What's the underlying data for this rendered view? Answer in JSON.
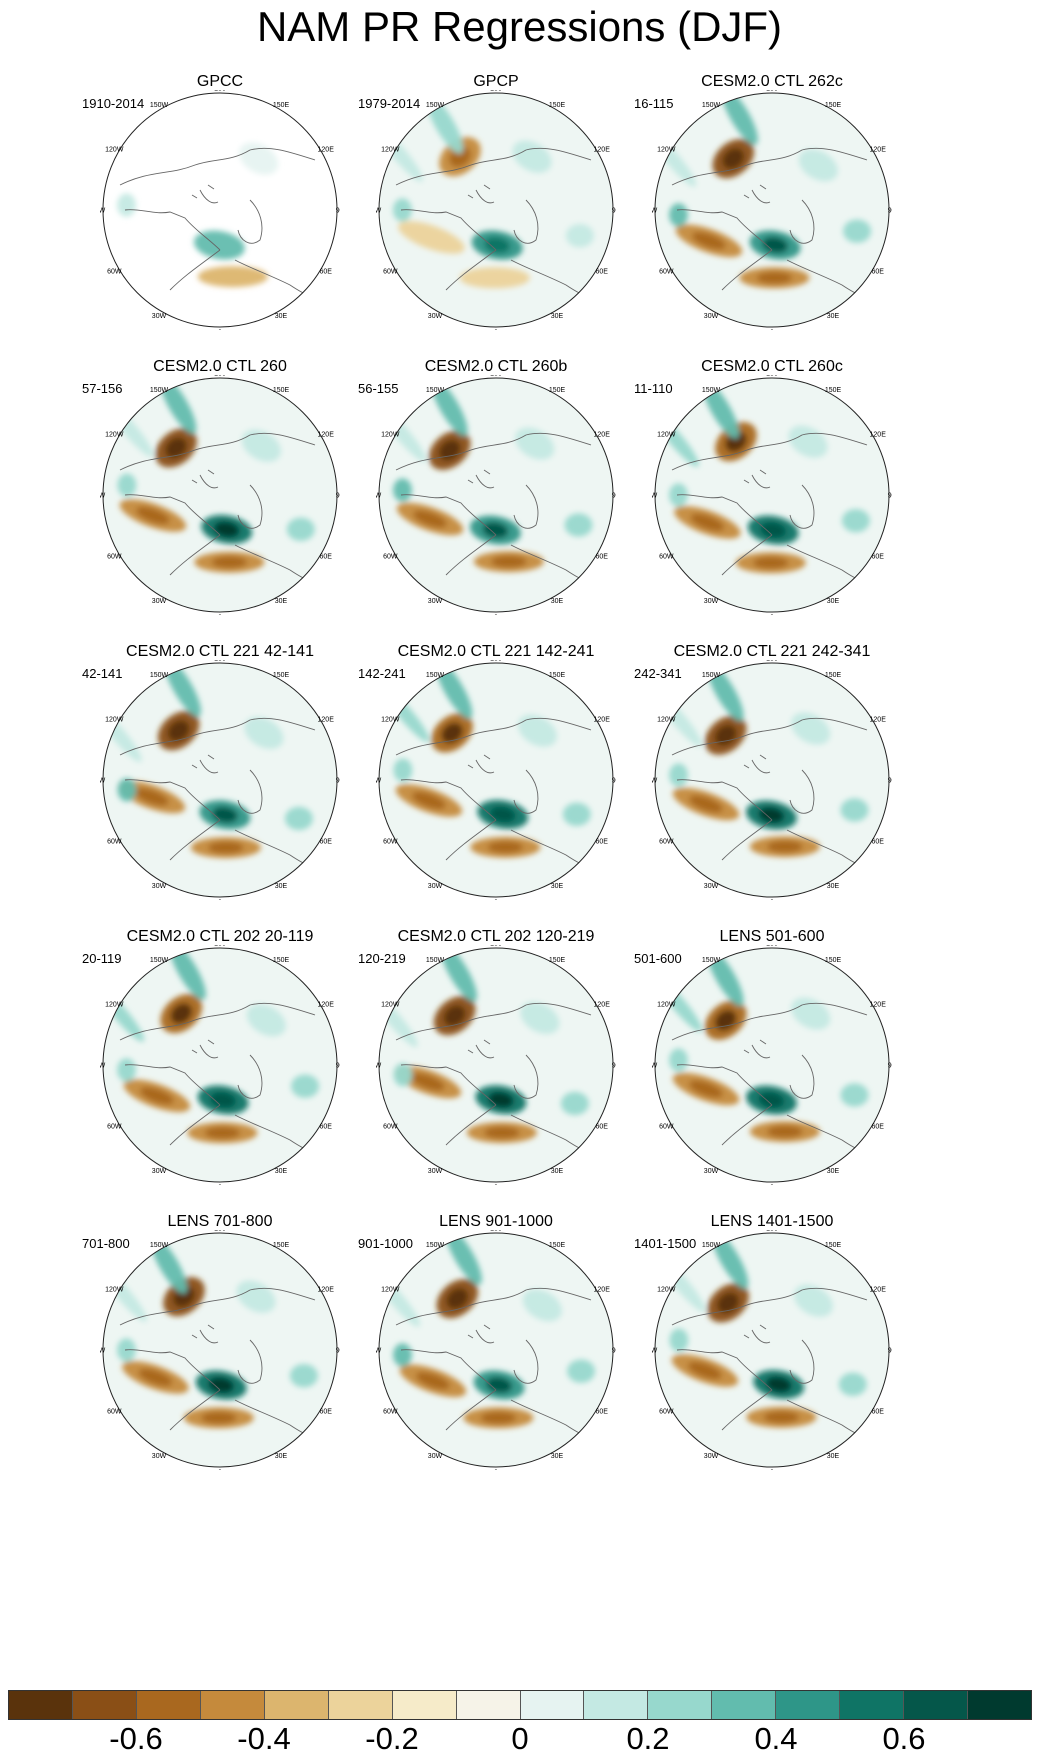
{
  "title": "NAM PR Regressions (DJF)",
  "panels": [
    {
      "title": "GPCC",
      "years": "1910-2014"
    },
    {
      "title": "GPCP",
      "years": "1979-2014"
    },
    {
      "title": "CESM2.0 CTL 262c",
      "years": "16-115"
    },
    {
      "title": "CESM2.0 CTL 260",
      "years": "57-156"
    },
    {
      "title": "CESM2.0 CTL 260b",
      "years": "56-155"
    },
    {
      "title": "CESM2.0 CTL 260c",
      "years": "11-110"
    },
    {
      "title": "CESM2.0 CTL 221 42-141",
      "years": "42-141"
    },
    {
      "title": "CESM2.0 CTL 221 142-241",
      "years": "142-241"
    },
    {
      "title": "CESM2.0 CTL 221 242-341",
      "years": "242-341"
    },
    {
      "title": "CESM2.0 CTL 202 20-119",
      "years": "20-119"
    },
    {
      "title": "CESM2.0 CTL 202 120-219",
      "years": "120-219"
    },
    {
      "title": "LENS 501-600",
      "years": "501-600"
    },
    {
      "title": "LENS 701-800",
      "years": "701-800"
    },
    {
      "title": "LENS 901-1000",
      "years": "901-1000"
    },
    {
      "title": "LENS 1401-1500",
      "years": "1401-1500"
    }
  ],
  "longitude_labels": [
    "180",
    "150E",
    "120E",
    "90E",
    "60E",
    "30E",
    "0",
    "30W",
    "60W",
    "90W",
    "120W",
    "150W"
  ],
  "colorbar": {
    "colors": [
      "#5a330c",
      "#8a4f16",
      "#a9681f",
      "#c58a3c",
      "#dcb56e",
      "#ecd39b",
      "#f6ebc9",
      "#f6f3e8",
      "#e6f3f1",
      "#c4e9e3",
      "#97d8cd",
      "#62bcae",
      "#2e9688",
      "#0f7465",
      "#05574a",
      "#003a2f"
    ],
    "tick_labels": [
      "-0.6",
      "-0.4",
      "-0.2",
      "0",
      "0.2",
      "0.4",
      "0.6"
    ],
    "tick_values": [
      -0.6,
      -0.4,
      -0.2,
      0,
      0.2,
      0.4,
      0.6
    ],
    "range": [
      -0.8,
      0.8
    ]
  },
  "chart_data": {
    "type": "heatmap",
    "title": "NAM PR Regressions (DJF)",
    "projection": "north polar stereographic",
    "levels": [
      -0.7,
      -0.6,
      -0.5,
      -0.4,
      -0.3,
      -0.2,
      -0.1,
      0,
      0.1,
      0.2,
      0.3,
      0.4,
      0.5,
      0.6,
      0.7
    ],
    "panel_count": 15,
    "layout": "5 rows x 3 columns"
  }
}
